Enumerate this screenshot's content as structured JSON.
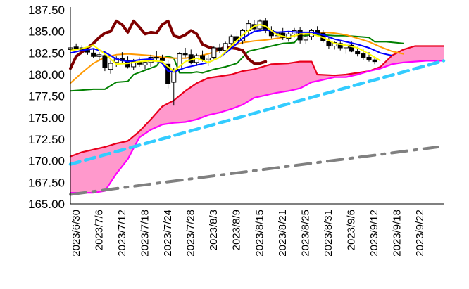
{
  "chart_data": {
    "type": "candlestick",
    "title": "",
    "xlabel": "",
    "ylabel": "",
    "ylim": [
      165.0,
      187.5
    ],
    "yticks": [
      "187.50",
      "185.00",
      "182.50",
      "180.00",
      "177.50",
      "175.00",
      "172.50",
      "170.00",
      "167.50",
      "165.00"
    ],
    "ytick_values": [
      187.5,
      185.0,
      182.5,
      180.0,
      177.5,
      175.0,
      172.5,
      170.0,
      167.5,
      165.0
    ],
    "x_tick_labels": [
      "2023/6/30",
      "2023/7/6",
      "2023/7/12",
      "2023/7/18",
      "2023/7/24",
      "2023/7/28",
      "2023/8/3",
      "2023/8/9",
      "2023/8/15",
      "2023/8/21",
      "2023/8/25",
      "2023/8/31",
      "2023/9/6",
      "2023/9/12",
      "2023/9/18",
      "2023/9/22"
    ],
    "x_range": [
      0,
      65
    ],
    "grid": false,
    "legend": "none",
    "colors": {
      "cloud_fill": "#ff99cc",
      "senkou_a": "#e8001c",
      "senkou_b": "#ff00ff",
      "chikou": "#7f0000",
      "tenkan": "#ffff00",
      "kijun": "#0000ff",
      "ma_orange": "#ff9900",
      "ma_green": "#008000",
      "trend_dashed": "#33ccff",
      "trend_dashdot": "#808080",
      "candle_up": "#ffffff",
      "candle_down": "#000000"
    },
    "candles": [
      [
        182.9,
        183.4,
        182.6,
        183.1
      ],
      [
        183.2,
        183.6,
        182.9,
        183.0
      ],
      [
        183.1,
        183.4,
        182.6,
        182.8
      ],
      [
        182.8,
        183.2,
        182.3,
        182.6
      ],
      [
        182.5,
        182.9,
        181.9,
        182.1
      ],
      [
        182.1,
        182.6,
        181.6,
        182.3
      ],
      [
        182.2,
        182.4,
        180.4,
        180.8
      ],
      [
        180.6,
        181.6,
        180.1,
        181.3
      ],
      [
        181.4,
        182.1,
        180.9,
        181.9
      ],
      [
        181.9,
        182.6,
        181.3,
        181.6
      ],
      [
        181.6,
        182.1,
        180.7,
        180.9
      ],
      [
        180.9,
        181.8,
        180.5,
        181.5
      ],
      [
        181.5,
        182.0,
        180.9,
        181.2
      ],
      [
        181.1,
        181.7,
        180.6,
        181.4
      ],
      [
        181.4,
        182.3,
        180.9,
        182.0
      ],
      [
        182.0,
        182.7,
        181.6,
        181.9
      ],
      [
        181.9,
        182.3,
        181.2,
        181.6
      ],
      [
        181.2,
        181.7,
        178.4,
        178.9
      ],
      [
        179.1,
        180.8,
        176.4,
        180.4
      ],
      [
        180.6,
        182.6,
        180.3,
        182.4
      ],
      [
        182.4,
        183.1,
        182.0,
        182.3
      ],
      [
        182.3,
        182.9,
        181.2,
        181.4
      ],
      [
        181.4,
        182.4,
        181.0,
        182.2
      ],
      [
        182.2,
        182.8,
        181.5,
        181.7
      ],
      [
        181.7,
        182.3,
        181.0,
        181.9
      ],
      [
        182.0,
        183.3,
        181.8,
        183.1
      ],
      [
        183.1,
        183.6,
        182.5,
        182.8
      ],
      [
        182.8,
        183.8,
        182.5,
        183.6
      ],
      [
        183.6,
        184.6,
        183.1,
        184.4
      ],
      [
        184.4,
        185.0,
        183.6,
        183.9
      ],
      [
        183.9,
        185.3,
        183.5,
        185.1
      ],
      [
        185.1,
        186.3,
        184.7,
        185.9
      ],
      [
        185.8,
        186.3,
        185.0,
        185.3
      ],
      [
        185.3,
        186.4,
        185.0,
        186.2
      ],
      [
        186.2,
        186.6,
        184.8,
        185.1
      ],
      [
        185.1,
        185.6,
        184.2,
        184.5
      ],
      [
        184.5,
        185.1,
        183.9,
        184.8
      ],
      [
        184.8,
        185.4,
        184.0,
        184.3
      ],
      [
        184.2,
        185.0,
        183.8,
        184.7
      ],
      [
        184.7,
        185.4,
        184.3,
        185.1
      ],
      [
        185.1,
        185.5,
        183.6,
        184.0
      ],
      [
        184.0,
        184.8,
        183.5,
        184.4
      ],
      [
        184.4,
        185.3,
        184.0,
        185.1
      ],
      [
        185.1,
        185.6,
        184.5,
        184.8
      ],
      [
        184.8,
        185.2,
        183.7,
        183.9
      ],
      [
        183.8,
        184.4,
        183.0,
        183.3
      ],
      [
        183.3,
        183.9,
        182.9,
        183.7
      ],
      [
        183.6,
        184.0,
        182.8,
        183.1
      ],
      [
        183.1,
        183.6,
        182.4,
        183.4
      ],
      [
        183.4,
        183.8,
        182.6,
        182.7
      ],
      [
        182.7,
        183.2,
        182.1,
        182.4
      ],
      [
        182.4,
        182.9,
        181.7,
        182.0
      ],
      [
        182.0,
        182.6,
        181.5,
        181.7
      ],
      [
        181.7,
        182.1,
        181.2,
        181.5
      ]
    ],
    "series": [
      {
        "key": "senkou_a",
        "points": [
          [
            0,
            170.5
          ],
          [
            2,
            171.0
          ],
          [
            4,
            171.3
          ],
          [
            6,
            171.6
          ],
          [
            8,
            172.0
          ],
          [
            10,
            172.3
          ],
          [
            12,
            173.4
          ],
          [
            14,
            174.8
          ],
          [
            16,
            176.3
          ],
          [
            18,
            177.0
          ],
          [
            20,
            178.1
          ],
          [
            22,
            179.0
          ],
          [
            24,
            179.6
          ],
          [
            26,
            179.8
          ],
          [
            28,
            180.0
          ],
          [
            30,
            180.4
          ],
          [
            32,
            180.6
          ],
          [
            34,
            181.0
          ],
          [
            35,
            181.2
          ],
          [
            38,
            181.3
          ],
          [
            40,
            181.5
          ],
          [
            42,
            181.5
          ],
          [
            43,
            180.0
          ],
          [
            46,
            179.9
          ],
          [
            48,
            180.0
          ],
          [
            50,
            180.2
          ],
          [
            52,
            180.4
          ],
          [
            54,
            180.9
          ],
          [
            56,
            182.2
          ],
          [
            58,
            182.9
          ],
          [
            60,
            183.3
          ],
          [
            62,
            183.3
          ],
          [
            65,
            183.3
          ]
        ]
      },
      {
        "key": "senkou_b",
        "points": [
          [
            0,
            166.3
          ],
          [
            4,
            166.3
          ],
          [
            6,
            166.5
          ],
          [
            8,
            168.5
          ],
          [
            10,
            170.2
          ],
          [
            12,
            172.7
          ],
          [
            14,
            173.6
          ],
          [
            16,
            174.2
          ],
          [
            18,
            174.4
          ],
          [
            20,
            174.5
          ],
          [
            22,
            174.8
          ],
          [
            24,
            175.3
          ],
          [
            26,
            175.6
          ],
          [
            28,
            176.0
          ],
          [
            30,
            176.5
          ],
          [
            32,
            177.3
          ],
          [
            34,
            177.6
          ],
          [
            36,
            177.9
          ],
          [
            38,
            178.1
          ],
          [
            40,
            178.4
          ],
          [
            42,
            179.1
          ],
          [
            44,
            179.4
          ],
          [
            46,
            179.7
          ],
          [
            48,
            179.7
          ],
          [
            50,
            180.0
          ],
          [
            52,
            180.4
          ],
          [
            54,
            180.7
          ],
          [
            56,
            181.2
          ],
          [
            58,
            181.4
          ],
          [
            60,
            181.5
          ],
          [
            62,
            181.6
          ],
          [
            65,
            181.6
          ]
        ]
      },
      {
        "key": "chikou",
        "points": [
          [
            0,
            180.7
          ],
          [
            1,
            182.1
          ],
          [
            2,
            182.6
          ],
          [
            3,
            183.1
          ],
          [
            4,
            183.6
          ],
          [
            5,
            184.3
          ],
          [
            6,
            184.8
          ],
          [
            7,
            185.0
          ],
          [
            8,
            186.2
          ],
          [
            9,
            185.8
          ],
          [
            10,
            184.9
          ],
          [
            11,
            186.2
          ],
          [
            12,
            185.5
          ],
          [
            13,
            184.7
          ],
          [
            14,
            184.9
          ],
          [
            15,
            184.8
          ],
          [
            16,
            185.8
          ],
          [
            17,
            186.2
          ],
          [
            18,
            184.5
          ],
          [
            19,
            184.3
          ],
          [
            20,
            184.6
          ],
          [
            21,
            185.1
          ],
          [
            22,
            184.7
          ],
          [
            23,
            183.5
          ],
          [
            24,
            183.2
          ],
          [
            25,
            183.0
          ],
          [
            26,
            182.9
          ],
          [
            27,
            183.2
          ],
          [
            28,
            183.1
          ],
          [
            29,
            183.0
          ],
          [
            30,
            182.8
          ],
          [
            31,
            181.8
          ],
          [
            32,
            181.3
          ],
          [
            33,
            181.3
          ],
          [
            34,
            181.5
          ]
        ]
      },
      {
        "key": "tenkan",
        "points": [
          [
            0,
            182.8
          ],
          [
            2,
            183.0
          ],
          [
            4,
            183.4
          ],
          [
            6,
            182.4
          ],
          [
            8,
            181.2
          ],
          [
            10,
            181.3
          ],
          [
            12,
            181.5
          ],
          [
            14,
            181.6
          ],
          [
            16,
            181.5
          ],
          [
            17,
            180.9
          ],
          [
            18,
            180.4
          ],
          [
            20,
            181.5
          ],
          [
            22,
            181.9
          ],
          [
            24,
            181.4
          ],
          [
            26,
            182.0
          ],
          [
            28,
            183.3
          ],
          [
            30,
            184.6
          ],
          [
            32,
            185.6
          ],
          [
            33,
            185.8
          ],
          [
            34,
            185.6
          ],
          [
            36,
            184.6
          ],
          [
            38,
            184.3
          ],
          [
            40,
            184.7
          ],
          [
            42,
            184.7
          ],
          [
            44,
            184.3
          ],
          [
            46,
            183.6
          ],
          [
            48,
            183.4
          ],
          [
            50,
            183.1
          ],
          [
            52,
            182.4
          ],
          [
            54,
            181.6
          ]
        ]
      },
      {
        "key": "kijun",
        "points": [
          [
            0,
            182.5
          ],
          [
            2,
            182.8
          ],
          [
            4,
            183.0
          ],
          [
            6,
            182.6
          ],
          [
            8,
            181.8
          ],
          [
            10,
            181.5
          ],
          [
            12,
            181.7
          ],
          [
            14,
            181.8
          ],
          [
            16,
            181.3
          ],
          [
            17,
            180.4
          ],
          [
            18,
            180.3
          ],
          [
            20,
            180.8
          ],
          [
            22,
            181.1
          ],
          [
            24,
            181.4
          ],
          [
            26,
            182.0
          ],
          [
            28,
            183.0
          ],
          [
            30,
            184.2
          ],
          [
            32,
            185.0
          ],
          [
            34,
            185.2
          ],
          [
            36,
            184.9
          ],
          [
            38,
            185.0
          ],
          [
            40,
            184.9
          ],
          [
            42,
            184.9
          ],
          [
            44,
            184.6
          ],
          [
            46,
            184.1
          ],
          [
            48,
            183.8
          ],
          [
            50,
            183.5
          ],
          [
            52,
            183.1
          ],
          [
            54,
            182.5
          ],
          [
            56,
            182.2
          ]
        ]
      },
      {
        "key": "ma_orange",
        "points": [
          [
            0,
            179.0
          ],
          [
            2,
            180.2
          ],
          [
            4,
            181.3
          ],
          [
            6,
            182.0
          ],
          [
            8,
            182.3
          ],
          [
            10,
            182.4
          ],
          [
            12,
            182.3
          ],
          [
            14,
            182.2
          ],
          [
            16,
            182.0
          ],
          [
            18,
            181.9
          ],
          [
            20,
            181.9
          ],
          [
            22,
            182.1
          ],
          [
            24,
            182.4
          ],
          [
            26,
            182.8
          ],
          [
            28,
            183.3
          ],
          [
            30,
            183.7
          ],
          [
            32,
            183.9
          ],
          [
            34,
            184.0
          ],
          [
            36,
            184.2
          ],
          [
            38,
            184.4
          ],
          [
            40,
            184.6
          ],
          [
            42,
            184.8
          ],
          [
            44,
            184.9
          ],
          [
            46,
            184.8
          ],
          [
            48,
            184.6
          ],
          [
            50,
            184.2
          ],
          [
            52,
            183.8
          ],
          [
            54,
            183.2
          ],
          [
            56,
            182.7
          ],
          [
            58,
            182.4
          ]
        ]
      },
      {
        "key": "ma_green",
        "points": [
          [
            0,
            178.1
          ],
          [
            2,
            178.2
          ],
          [
            4,
            178.3
          ],
          [
            6,
            178.3
          ],
          [
            8,
            179.1
          ],
          [
            10,
            179.2
          ],
          [
            11,
            180.0
          ],
          [
            13,
            180.5
          ],
          [
            15,
            181.0
          ],
          [
            16,
            181.9
          ],
          [
            17,
            182.1
          ],
          [
            18,
            181.9
          ],
          [
            19,
            180.2
          ],
          [
            21,
            180.2
          ],
          [
            22,
            180.3
          ],
          [
            23,
            180.2
          ],
          [
            25,
            180.6
          ],
          [
            27,
            180.9
          ],
          [
            29,
            181.3
          ],
          [
            31,
            182.7
          ],
          [
            33,
            183.0
          ],
          [
            35,
            183.3
          ],
          [
            37,
            183.6
          ],
          [
            39,
            183.7
          ],
          [
            40,
            184.5
          ],
          [
            42,
            184.6
          ],
          [
            44,
            184.6
          ],
          [
            46,
            184.5
          ],
          [
            48,
            184.5
          ],
          [
            50,
            184.4
          ],
          [
            52,
            184.3
          ],
          [
            53,
            183.8
          ],
          [
            55,
            183.8
          ],
          [
            58,
            183.6
          ]
        ]
      },
      {
        "key": "trend_dashed",
        "points": [
          [
            0,
            169.6
          ],
          [
            65,
            181.6
          ]
        ]
      },
      {
        "key": "trend_dashdot",
        "points": [
          [
            0,
            166.1
          ],
          [
            64,
            171.6
          ]
        ]
      }
    ]
  }
}
